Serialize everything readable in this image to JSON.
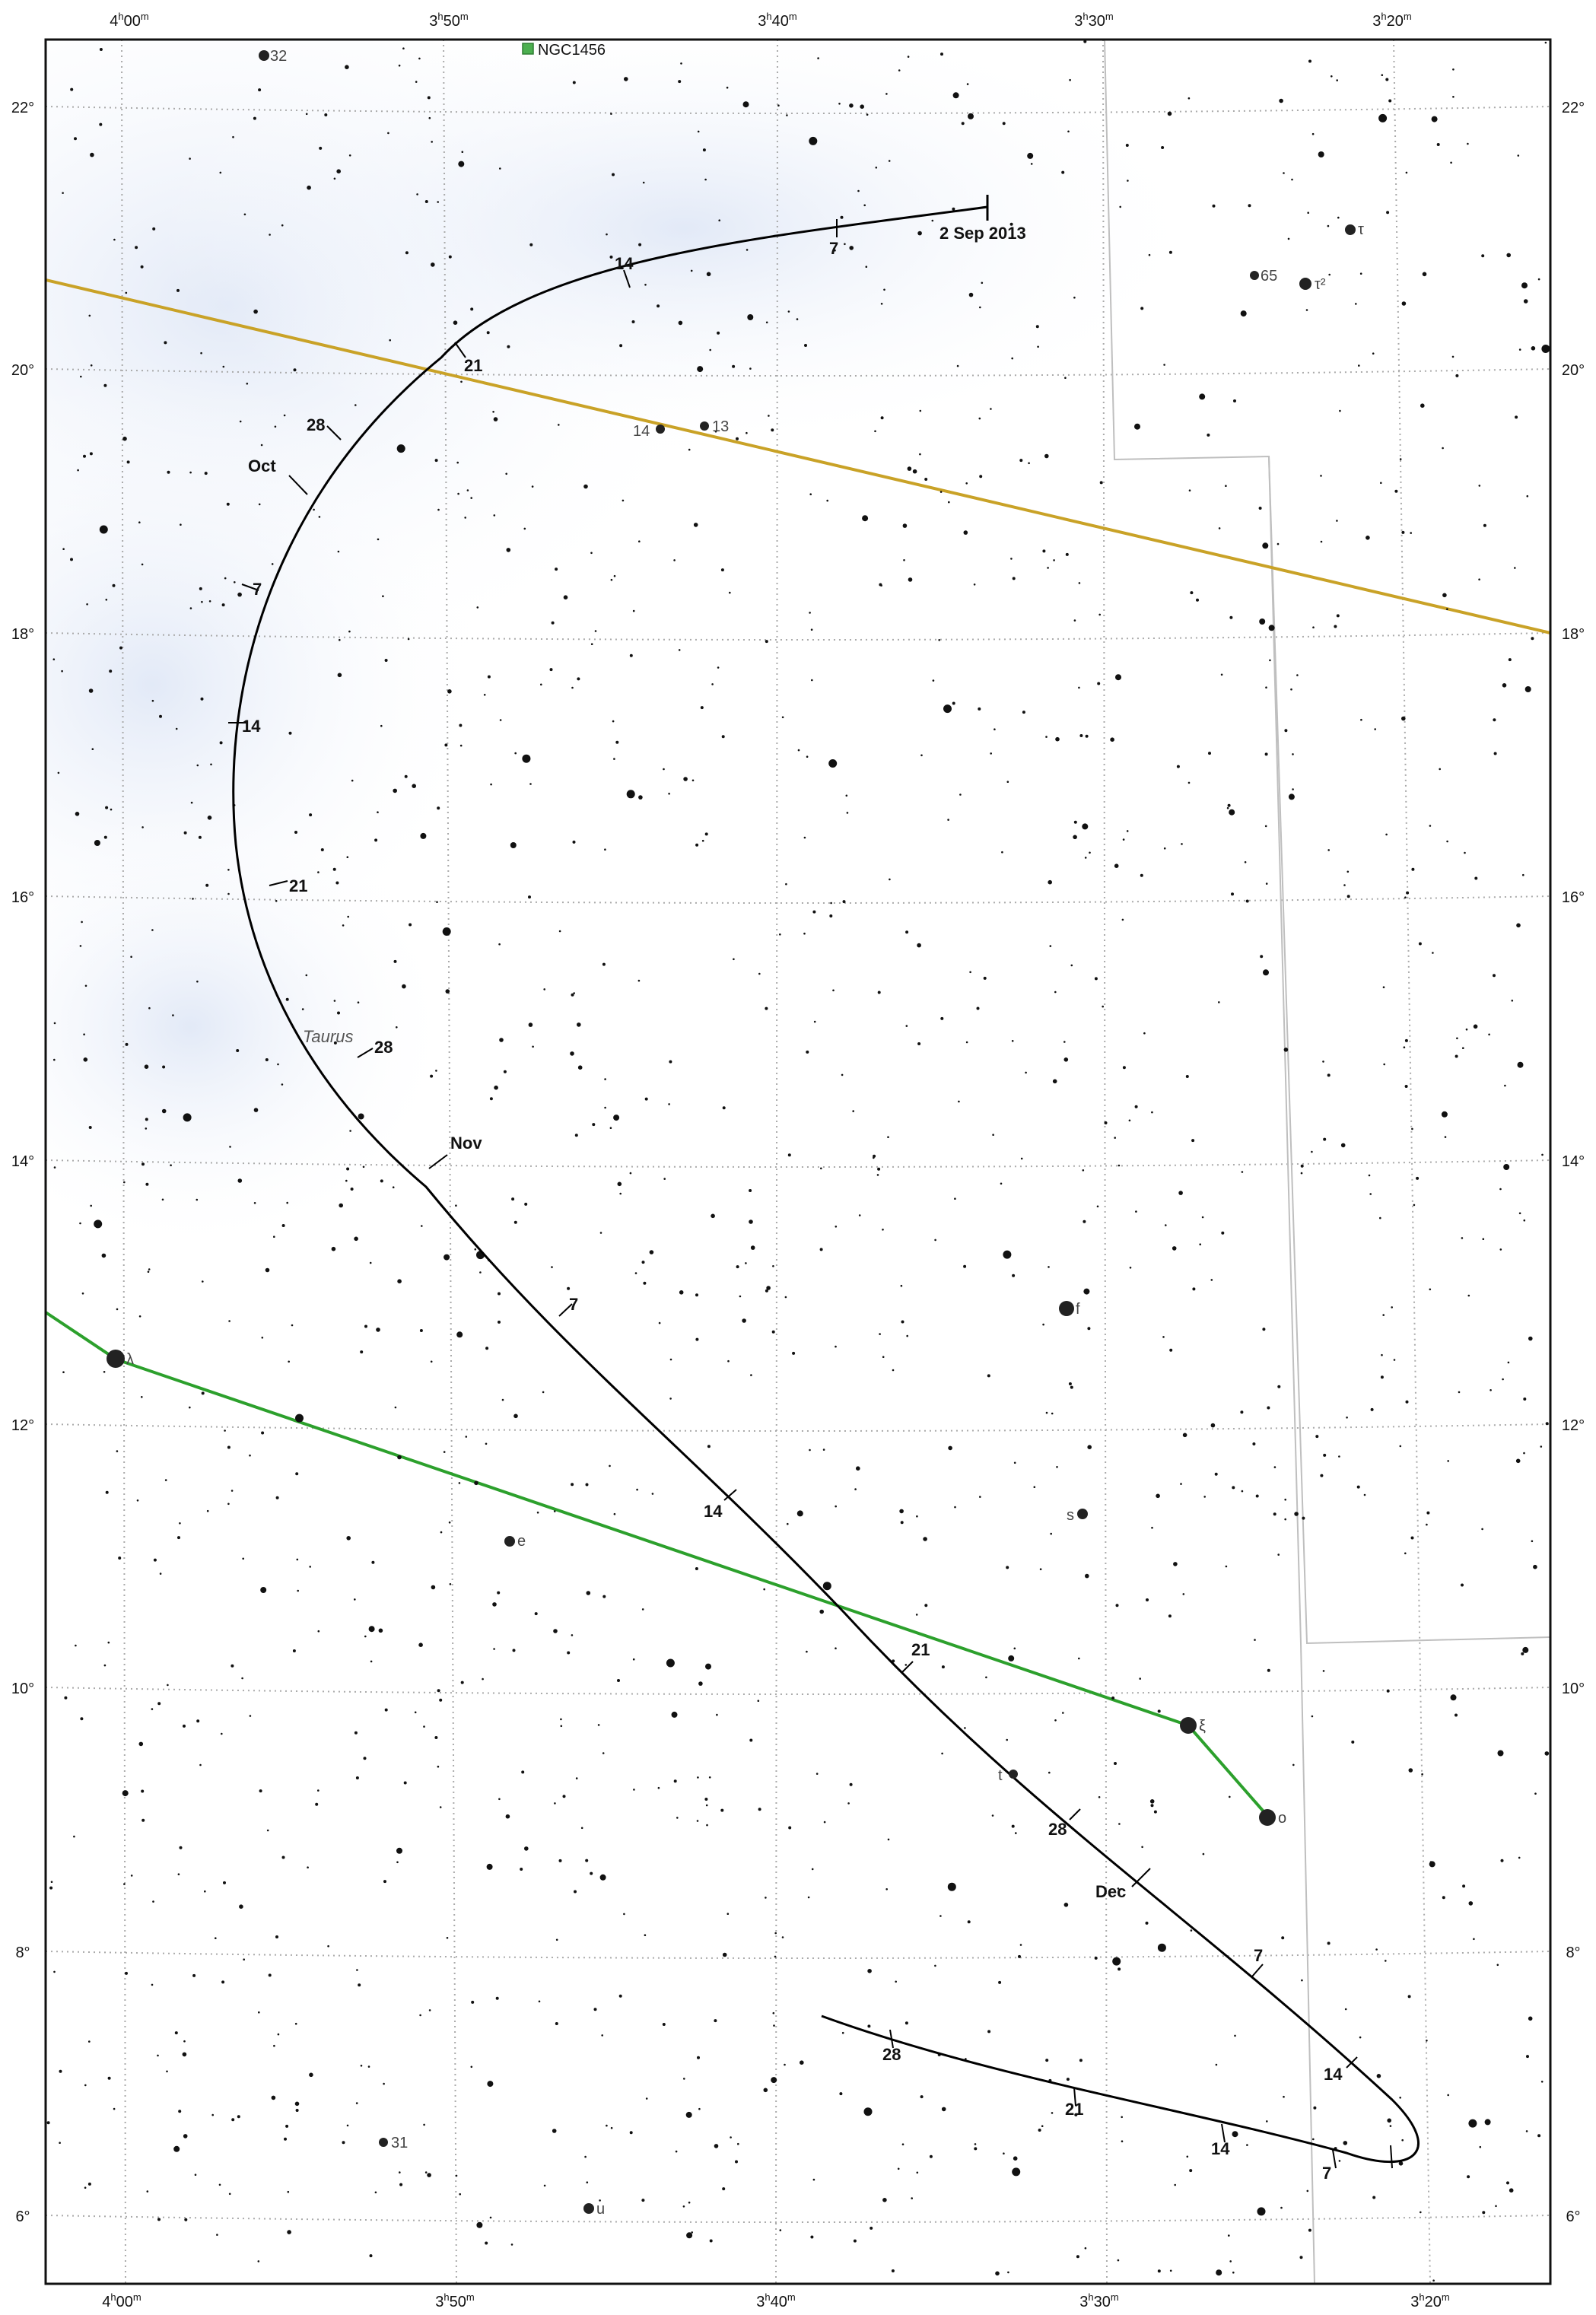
{
  "chart": {
    "ra_labels": [
      {
        "h": 4,
        "m": "00"
      },
      {
        "h": 3,
        "m": "50"
      },
      {
        "h": 3,
        "m": "40"
      },
      {
        "h": 3,
        "m": "30"
      },
      {
        "h": 3,
        "m": "20"
      }
    ],
    "dec_labels": [
      "22°",
      "20°",
      "18°",
      "16°",
      "14°",
      "12°",
      "10°",
      "8°",
      "6°"
    ],
    "colors": {
      "ecliptic": "#c9a227",
      "constellation_line": "#2ca02c",
      "boundary": "#bfbfbf",
      "grid": "#aaaaaa",
      "path": "#000000",
      "milky_way": "#e9eef8"
    },
    "constellation_name": "Taurus",
    "deep_sky": {
      "name": "NGC1456",
      "symbol": "green-square"
    },
    "path_start_label": "2 Sep 2013",
    "date_labels": [
      "7",
      "14",
      "21",
      "28",
      "Oct",
      "7",
      "14",
      "21",
      "28",
      "Nov",
      "7",
      "14",
      "21",
      "28",
      "Dec",
      "7",
      "14",
      "7",
      "14",
      "21",
      "28"
    ],
    "named_stars": [
      {
        "name": "32"
      },
      {
        "name": "τ"
      },
      {
        "name": "65"
      },
      {
        "name": "τ²"
      },
      {
        "name": "14"
      },
      {
        "name": "13"
      },
      {
        "name": "f"
      },
      {
        "name": "λ"
      },
      {
        "name": "e"
      },
      {
        "name": "s"
      },
      {
        "name": "ξ"
      },
      {
        "name": "o"
      },
      {
        "name": "t"
      },
      {
        "name": "31"
      },
      {
        "name": "u"
      }
    ]
  }
}
